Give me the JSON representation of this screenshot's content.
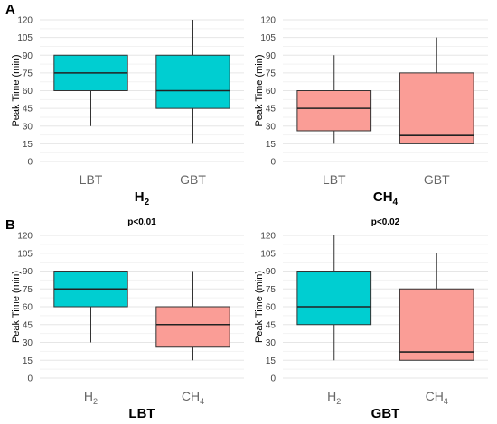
{
  "figure": {
    "panel_letters": [
      "A",
      "B"
    ]
  },
  "chart_data": [
    {
      "type": "box",
      "panel": "A",
      "ylabel": "Peak Time (min)",
      "title": "H",
      "title_sub": "2",
      "annotation": "",
      "yticks": [
        0,
        15,
        30,
        45,
        60,
        75,
        90,
        105,
        120
      ],
      "ylim": [
        0,
        120
      ],
      "grid": true,
      "boxes": [
        {
          "label": "LBT",
          "label_sub": "",
          "color": "#00CED1",
          "min": 30,
          "q1": 60,
          "median": 75,
          "q3": 90,
          "max": 90
        },
        {
          "label": "GBT",
          "label_sub": "",
          "color": "#00CED1",
          "min": 15,
          "q1": 45,
          "median": 60,
          "q3": 90,
          "max": 120
        }
      ]
    },
    {
      "type": "box",
      "panel": "A",
      "ylabel": "Peak Time (min)",
      "title": "CH",
      "title_sub": "4",
      "annotation": "",
      "yticks": [
        0,
        15,
        30,
        45,
        60,
        75,
        90,
        105,
        120
      ],
      "ylim": [
        0,
        120
      ],
      "grid": true,
      "boxes": [
        {
          "label": "LBT",
          "label_sub": "",
          "color": "#FA9D96",
          "min": 15,
          "q1": 26,
          "median": 45,
          "q3": 60,
          "max": 90
        },
        {
          "label": "GBT",
          "label_sub": "",
          "color": "#FA9D96",
          "min": 15,
          "q1": 15,
          "median": 22,
          "q3": 75,
          "max": 105
        }
      ]
    },
    {
      "type": "box",
      "panel": "B",
      "ylabel": "Peak Time (min)",
      "title": "LBT",
      "title_sub": "",
      "annotation": "p<0.01",
      "yticks": [
        0,
        15,
        30,
        45,
        60,
        75,
        90,
        105,
        120
      ],
      "ylim": [
        0,
        120
      ],
      "grid": true,
      "boxes": [
        {
          "label": "H",
          "label_sub": "2",
          "color": "#00CED1",
          "min": 30,
          "q1": 60,
          "median": 75,
          "q3": 90,
          "max": 90
        },
        {
          "label": "CH",
          "label_sub": "4",
          "color": "#FA9D96",
          "min": 15,
          "q1": 26,
          "median": 45,
          "q3": 60,
          "max": 90
        }
      ]
    },
    {
      "type": "box",
      "panel": "B",
      "ylabel": "Peak Time (min)",
      "title": "GBT",
      "title_sub": "",
      "annotation": "p<0.02",
      "yticks": [
        0,
        15,
        30,
        45,
        60,
        75,
        90,
        105,
        120
      ],
      "ylim": [
        0,
        120
      ],
      "grid": true,
      "boxes": [
        {
          "label": "H",
          "label_sub": "2",
          "color": "#00CED1",
          "min": 15,
          "q1": 45,
          "median": 60,
          "q3": 90,
          "max": 120
        },
        {
          "label": "CH",
          "label_sub": "4",
          "color": "#FA9D96",
          "min": 15,
          "q1": 15,
          "median": 22,
          "q3": 75,
          "max": 105
        }
      ]
    }
  ]
}
